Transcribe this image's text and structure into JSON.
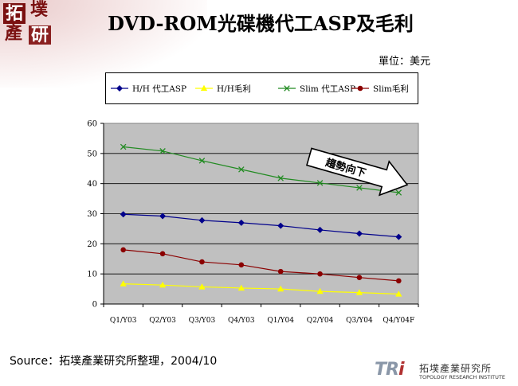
{
  "title": "DVD-ROM光碟機代工ASP及毛利",
  "unit_label": "單位：美元",
  "source": "Source：拓墣產業研究所整理，2004/10",
  "logo": {
    "chars": [
      "拓",
      "墣",
      "產",
      "研"
    ]
  },
  "footer_logo": {
    "mark": "TRi",
    "cn": "拓墣產業研究所",
    "en": "TOPOLOGY RESEARCH INSTITUTE"
  },
  "trend_arrow_label": "趨勢向下",
  "chart_data": {
    "type": "line",
    "categories": [
      "Q1/Y03",
      "Q2/Y03",
      "Q3/Y03",
      "Q4/Y03",
      "Q1/Y04",
      "Q2/Y04",
      "Q3/Y04",
      "Q4/Y04F"
    ],
    "ylim": [
      0,
      60
    ],
    "yticks": [
      0,
      10,
      20,
      30,
      40,
      50,
      60
    ],
    "grid": true,
    "legend_position": "top",
    "plot_background": "#c0c0c0",
    "series": [
      {
        "name": "H/H 代工ASP",
        "color": "#00008b",
        "marker": "diamond",
        "values": [
          29.8,
          29.2,
          27.8,
          27.0,
          26.0,
          24.6,
          23.4,
          22.3
        ]
      },
      {
        "name": "H/H毛利",
        "color": "#ffff00",
        "marker": "triangle",
        "values": [
          6.7,
          6.3,
          5.7,
          5.3,
          5.0,
          4.2,
          3.8,
          3.3
        ]
      },
      {
        "name": "Slim 代工ASP",
        "color": "#228b22",
        "marker": "x",
        "values": [
          52.2,
          50.8,
          47.6,
          44.7,
          41.8,
          40.2,
          38.6,
          37.0
        ]
      },
      {
        "name": "Slim毛利",
        "color": "#8b0000",
        "marker": "circle",
        "values": [
          18.0,
          16.7,
          14.0,
          13.0,
          10.8,
          10.0,
          8.8,
          7.7
        ]
      }
    ]
  }
}
